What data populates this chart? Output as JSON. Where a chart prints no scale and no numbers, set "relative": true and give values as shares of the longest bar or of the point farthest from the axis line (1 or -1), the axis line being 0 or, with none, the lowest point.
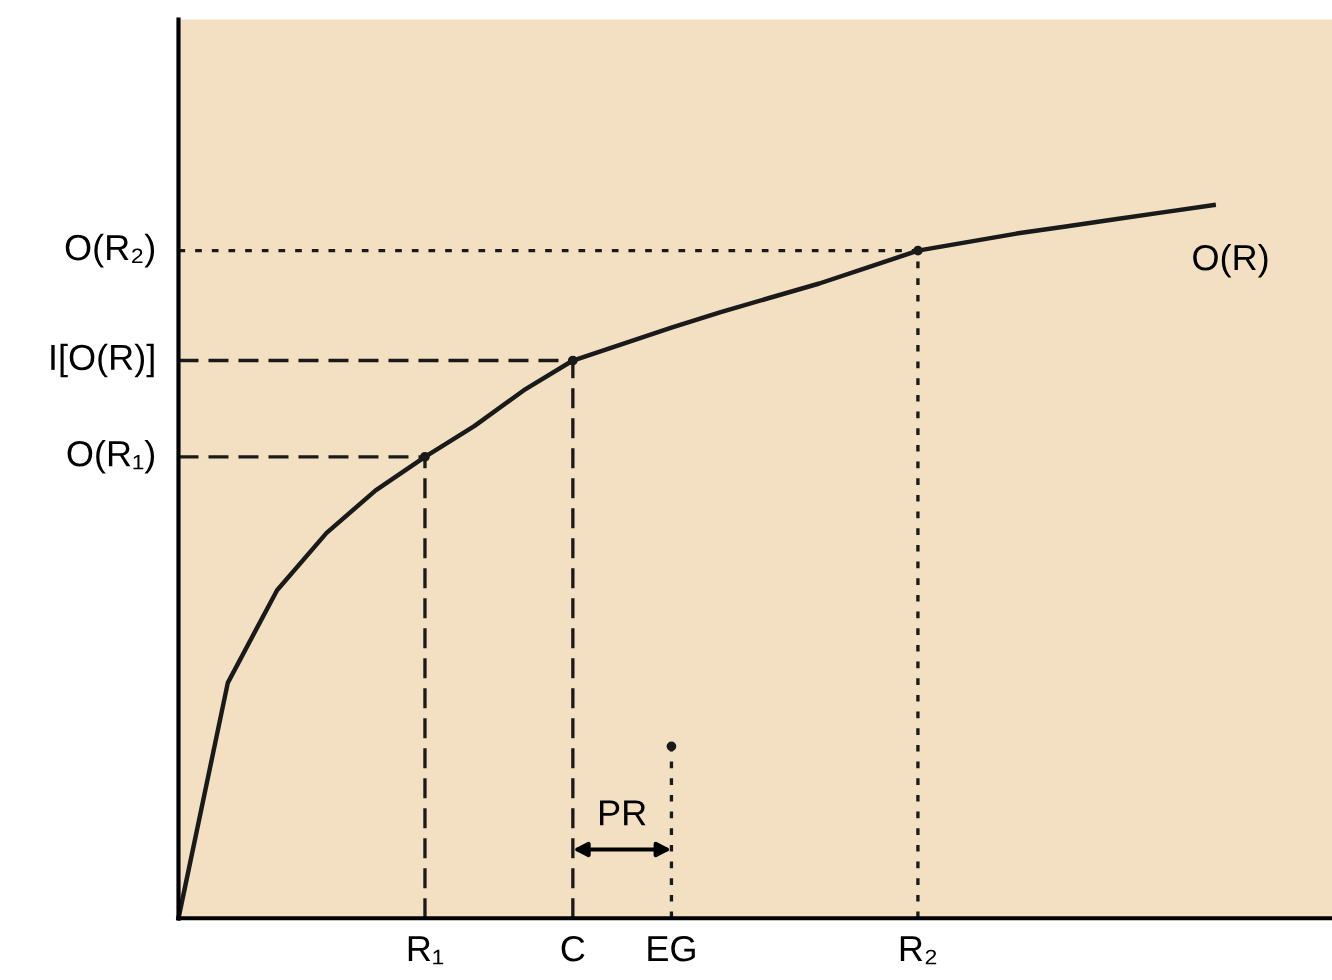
{
  "chart_data": {
    "type": "line",
    "relative": true,
    "categories": [
      null,
      null,
      null,
      null,
      null,
      "R₁",
      null,
      null,
      "C",
      null,
      "EG",
      null,
      null,
      null,
      null,
      "R₂",
      null,
      null,
      null,
      null,
      null,
      null,
      null,
      null
    ],
    "series": [
      {
        "name": "O(R)",
        "color": "#1a1a1a",
        "line_style": "solid",
        "values": [
          0,
          0.33,
          0.46,
          0.54,
          0.6,
          0.647,
          0.69,
          0.74,
          0.782,
          0.805,
          0.828,
          0.85,
          0.87,
          0.89,
          0.913,
          0.936,
          0.948,
          0.96,
          0.97,
          0.98,
          0.99,
          1.0,
          null,
          null
        ]
      },
      {
        "color": "#1a1a1a",
        "line_style": "dashed",
        "values": [
          0.647,
          0.647,
          0.647,
          0.647,
          0.647,
          0.647,
          null,
          null,
          null,
          null,
          null,
          null,
          null,
          null,
          null,
          null,
          null,
          null,
          null,
          null,
          null,
          null,
          null,
          null
        ]
      },
      {
        "color": "#1a1a1a",
        "line_style": "dashed",
        "values": [
          0.782,
          0.782,
          0.782,
          0.782,
          0.782,
          0.782,
          0.782,
          0.782,
          0.782,
          null,
          null,
          null,
          null,
          null,
          null,
          null,
          null,
          null,
          null,
          null,
          null,
          null,
          null,
          null
        ]
      },
      {
        "color": "#1a1a1a",
        "line_style": "dotted",
        "values": [
          0.936,
          0.936,
          0.936,
          0.936,
          0.936,
          0.936,
          0.936,
          0.936,
          0.936,
          0.936,
          0.936,
          0.936,
          0.936,
          0.936,
          0.936,
          0.936,
          null,
          null,
          null,
          null,
          null,
          null,
          null,
          null
        ]
      },
      {
        "type": "lollipop",
        "marker": "none",
        "color": "#1a1a1a",
        "line_style": "dashed",
        "values": [
          null,
          null,
          null,
          null,
          null,
          0.647,
          null,
          null,
          null,
          null,
          null,
          null,
          null,
          null,
          null,
          null,
          null,
          null,
          null,
          null,
          null,
          null,
          null,
          null
        ]
      },
      {
        "type": "lollipop",
        "marker": "none",
        "color": "#1a1a1a",
        "line_style": "dashed",
        "values": [
          null,
          null,
          null,
          null,
          null,
          null,
          null,
          null,
          0.782,
          null,
          null,
          null,
          null,
          null,
          null,
          null,
          null,
          null,
          null,
          null,
          null,
          null,
          null,
          null
        ]
      },
      {
        "type": "lollipop",
        "marker": "none",
        "color": "#1a1a1a",
        "line_style": "dotted",
        "values": [
          null,
          null,
          null,
          null,
          null,
          null,
          null,
          null,
          null,
          null,
          null,
          null,
          null,
          null,
          null,
          0.936,
          null,
          null,
          null,
          null,
          null,
          null,
          null,
          null
        ]
      },
      {
        "type": "lollipop",
        "marker": "none",
        "color": "#1a1a1a",
        "line_style": "dotted",
        "values": [
          null,
          null,
          null,
          null,
          null,
          null,
          null,
          null,
          null,
          null,
          0.241,
          null,
          null,
          null,
          null,
          null,
          null,
          null,
          null,
          null,
          null,
          null,
          null,
          null
        ]
      }
    ],
    "annotations": [
      "O(R₂)",
      "I[O(R)]",
      "O(R₁)",
      "PR"
    ]
  }
}
